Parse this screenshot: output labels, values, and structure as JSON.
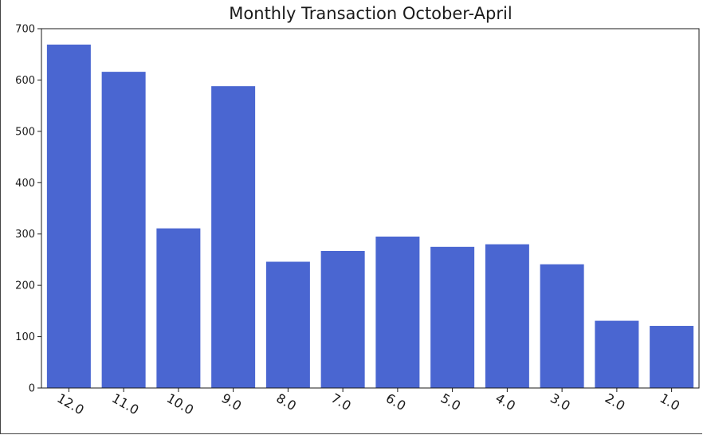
{
  "chart_data": {
    "type": "bar",
    "title": "Monthly Transaction October-April",
    "xlabel": "",
    "ylabel": "",
    "categories": [
      "12.0",
      "11.0",
      "10.0",
      "9.0",
      "8.0",
      "7.0",
      "6.0",
      "5.0",
      "4.0",
      "3.0",
      "2.0",
      "1.0"
    ],
    "values": [
      669,
      616,
      311,
      588,
      246,
      267,
      295,
      275,
      280,
      241,
      131,
      121
    ],
    "ylim": [
      0,
      700
    ],
    "yticks": [
      0,
      100,
      200,
      300,
      400,
      500,
      600,
      700
    ],
    "bar_color": "#4a66d1",
    "grid": false,
    "legend": "none"
  }
}
